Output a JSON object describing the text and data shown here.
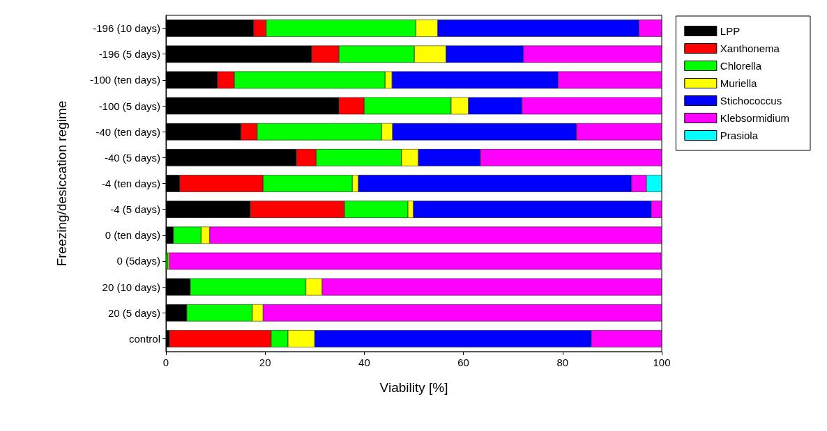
{
  "chart_data": {
    "type": "bar",
    "orientation": "horizontal",
    "stacked": true,
    "xlabel": "Viability [%]",
    "ylabel": "Freezing/desiccation regime",
    "categories": [
      "-196 (10 days)",
      "-196 (5 days)",
      "-100 (ten days)",
      "-100 (5 days)",
      "-40 (ten days)",
      "-40 (5 days)",
      "-4 (ten days)",
      "-4 (5 days)",
      "0 (ten days)",
      "0 (5days)",
      "20 (10 days)",
      "20 (5 days)",
      "control"
    ],
    "series": [
      {
        "name": "LPP",
        "color": "#000000",
        "values": [
          17.7,
          29.4,
          10.4,
          34.9,
          15.1,
          26.3,
          2.8,
          17.0,
          1.5,
          null,
          4.9,
          4.2,
          0.7
        ]
      },
      {
        "name": "Xanthonema",
        "color": "#ff0000",
        "values": [
          2.5,
          5.5,
          3.4,
          5.1,
          3.3,
          4.0,
          16.8,
          19.0,
          0,
          0,
          0,
          0,
          20.5
        ]
      },
      {
        "name": "Chlorella",
        "color": "#00ff00",
        "values": [
          30.2,
          15.2,
          30.4,
          17.5,
          25.1,
          17.2,
          18.0,
          12.8,
          5.6,
          0.4,
          23.3,
          13.2,
          3.4
        ]
      },
      {
        "name": "Muriella",
        "color": "#ffff00",
        "values": [
          4.4,
          6.4,
          1.4,
          3.5,
          2.2,
          3.4,
          1.2,
          1.1,
          1.7,
          0.3,
          3.3,
          2.2,
          5.4
        ]
      },
      {
        "name": "Stichococcus",
        "color": "#0000ff",
        "values": [
          40.6,
          15.6,
          33.5,
          10.8,
          37.1,
          12.5,
          55.1,
          48.0,
          0,
          0,
          0,
          0,
          55.8
        ]
      },
      {
        "name": "Klebsormidium",
        "color": "#ff00ff",
        "values": [
          4.6,
          27.9,
          20.9,
          28.2,
          17.2,
          36.6,
          3.0,
          2.1,
          91.2,
          99.2,
          68.5,
          80.4,
          14.2
        ]
      },
      {
        "name": "Prasiola",
        "color": "#00ffff",
        "values": [
          0,
          0,
          0,
          0,
          0,
          0,
          3.1,
          0,
          0,
          0,
          0,
          0,
          0
        ]
      }
    ],
    "xlim": [
      0,
      100
    ],
    "xticks": [
      0,
      20,
      40,
      60,
      80,
      100
    ],
    "grid": false,
    "legend": "top right"
  }
}
